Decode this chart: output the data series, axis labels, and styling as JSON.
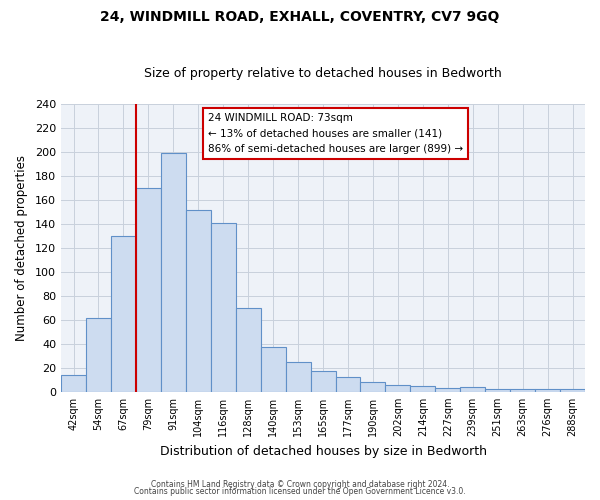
{
  "title": "24, WINDMILL ROAD, EXHALL, COVENTRY, CV7 9GQ",
  "subtitle": "Size of property relative to detached houses in Bedworth",
  "xlabel": "Distribution of detached houses by size in Bedworth",
  "ylabel": "Number of detached properties",
  "bar_labels": [
    "42sqm",
    "54sqm",
    "67sqm",
    "79sqm",
    "91sqm",
    "104sqm",
    "116sqm",
    "128sqm",
    "140sqm",
    "153sqm",
    "165sqm",
    "177sqm",
    "190sqm",
    "202sqm",
    "214sqm",
    "227sqm",
    "239sqm",
    "251sqm",
    "263sqm",
    "276sqm",
    "288sqm"
  ],
  "bar_values": [
    14,
    62,
    130,
    170,
    199,
    152,
    141,
    70,
    37,
    25,
    17,
    12,
    8,
    6,
    5,
    3,
    4,
    2,
    2,
    2,
    2
  ],
  "bar_color": "#cddcf0",
  "bar_edge_color": "#6090c8",
  "vline_color": "#cc0000",
  "ylim": [
    0,
    240
  ],
  "yticks": [
    0,
    20,
    40,
    60,
    80,
    100,
    120,
    140,
    160,
    180,
    200,
    220,
    240
  ],
  "annotation_title": "24 WINDMILL ROAD: 73sqm",
  "annotation_line1": "← 13% of detached houses are smaller (141)",
  "annotation_line2": "86% of semi-detached houses are larger (899) →",
  "footer1": "Contains HM Land Registry data © Crown copyright and database right 2024.",
  "footer2": "Contains public sector information licensed under the Open Government Licence v3.0.",
  "background_color": "#ffffff",
  "grid_color": "#c8d0dc",
  "plot_bg_color": "#eef2f8"
}
